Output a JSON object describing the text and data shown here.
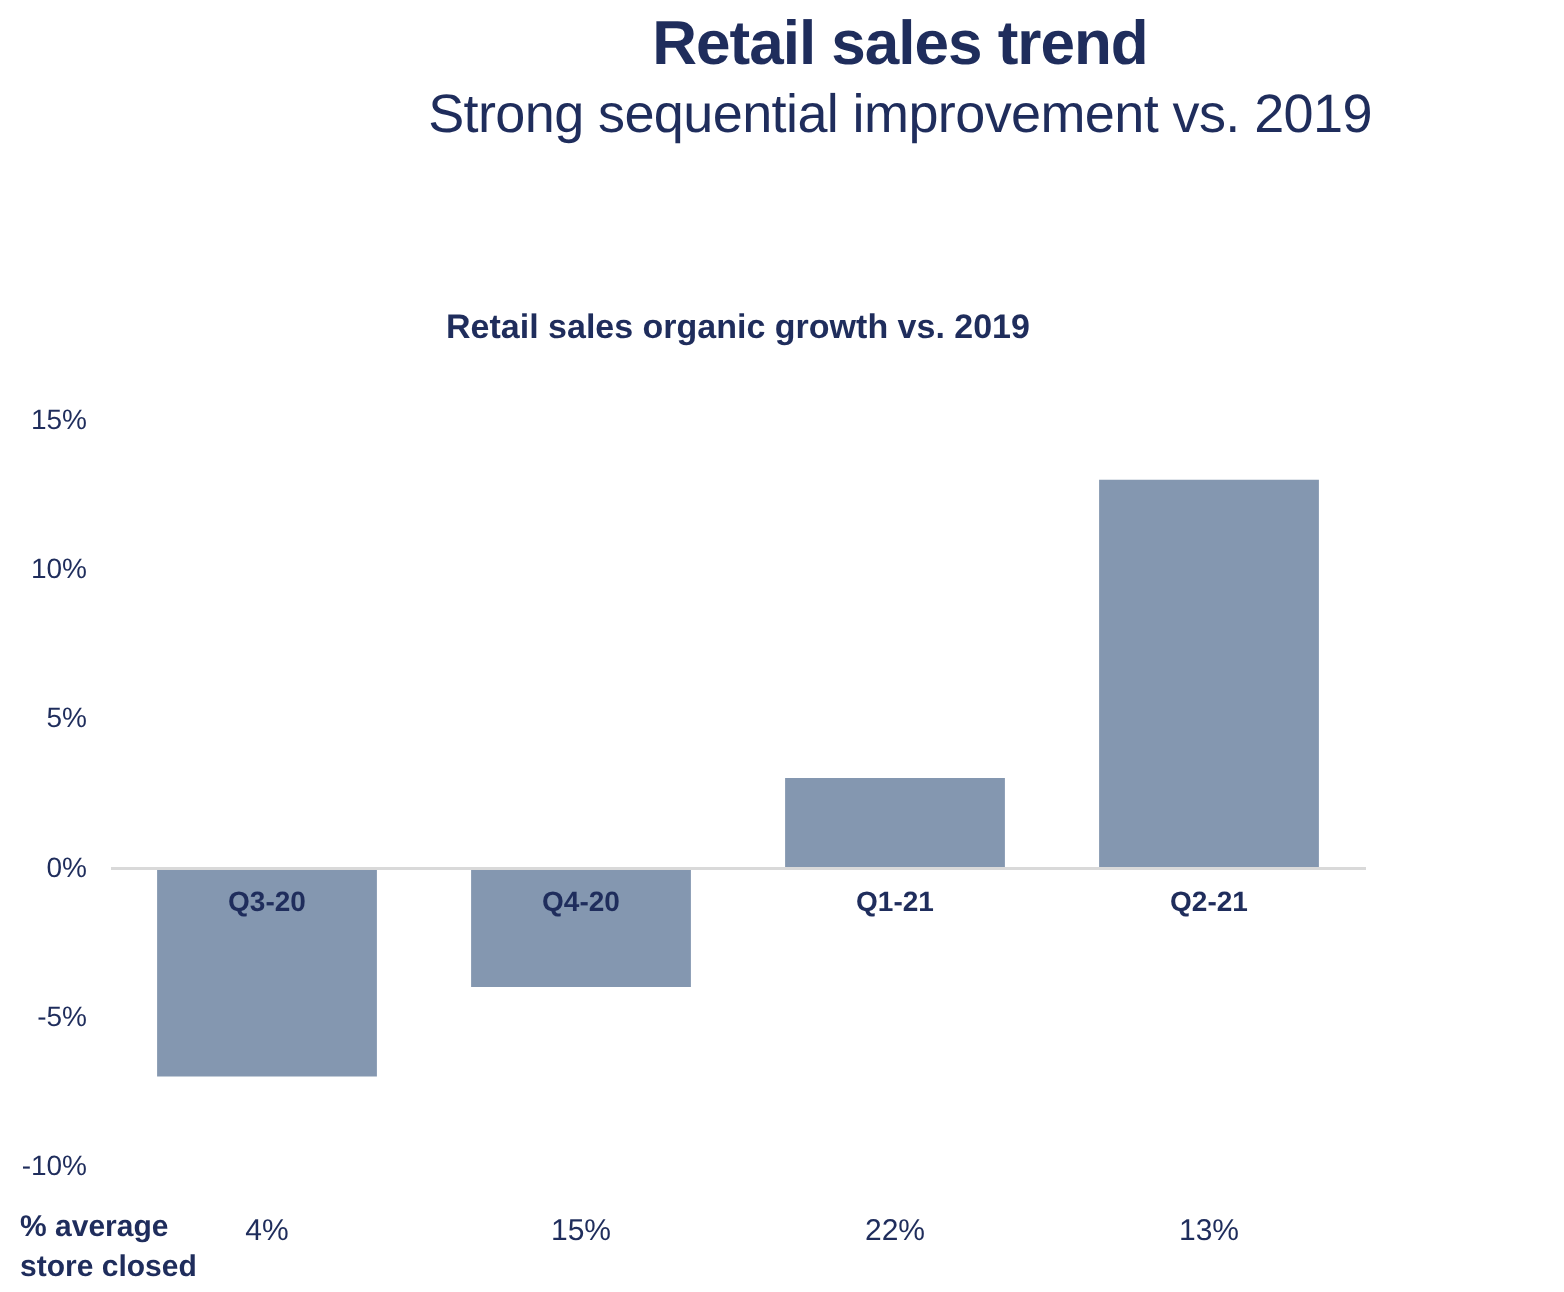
{
  "chart_data": {
    "type": "bar",
    "title": "Retail sales trend",
    "subtitle": "Strong sequential improvement vs. 2019",
    "categories": [
      "Q3-20",
      "Q4-20",
      "Q1-21",
      "Q2-21"
    ],
    "series": [
      {
        "color": "#8497b0",
        "values": [
          -7,
          -4,
          3,
          13
        ]
      }
    ],
    "ylim": [
      -10,
      15
    ],
    "yticks": [
      {
        "value": -10,
        "label": "-10%"
      },
      {
        "value": -5,
        "label": "-5%"
      },
      {
        "value": 0,
        "label": "0%"
      },
      {
        "value": 5,
        "label": "5%"
      },
      {
        "value": 10,
        "label": "10%"
      },
      {
        "value": 15,
        "label": "15%"
      }
    ],
    "grid": false,
    "legend": false,
    "annotations": [
      "Retail sales organic growth vs. 2019",
      "% average store closed",
      "4%",
      "15%",
      "22%",
      "13%"
    ]
  }
}
